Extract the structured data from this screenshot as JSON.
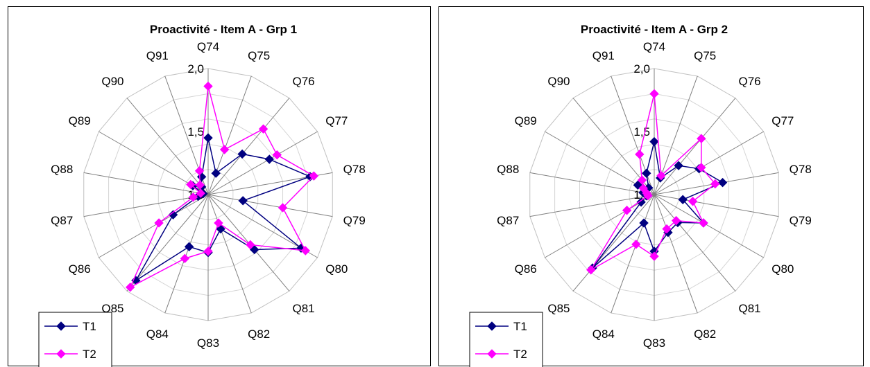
{
  "chart_data": [
    {
      "type": "radar",
      "title": "Proactivité - Item A - Grp 1",
      "categories": [
        "Q74",
        "Q75",
        "Q76",
        "Q77",
        "Q78",
        "Q79",
        "Q80",
        "Q81",
        "Q82",
        "Q83",
        "Q84",
        "Q85",
        "Q86",
        "Q87",
        "Q88",
        "Q89",
        "Q90",
        "Q91"
      ],
      "rlim": [
        1.0,
        2.0
      ],
      "ticks": [
        "1,0",
        "1,5",
        "2,0"
      ],
      "legend_position": "bottom-left",
      "series": [
        {
          "name": "T1",
          "color": "#000080",
          "marker": "diamond",
          "values": [
            1.45,
            1.18,
            1.42,
            1.56,
            1.82,
            1.28,
            1.85,
            1.57,
            1.29,
            1.46,
            1.44,
            1.89,
            1.32,
            1.08,
            1.04,
            1.14,
            1.08,
            1.15
          ]
        },
        {
          "name": "T2",
          "color": "#FF00FF",
          "marker": "diamond",
          "values": [
            1.86,
            1.38,
            1.68,
            1.63,
            1.85,
            1.6,
            1.89,
            1.52,
            1.24,
            1.45,
            1.54,
            1.96,
            1.45,
            1.12,
            1.06,
            1.16,
            1.1,
            1.2
          ]
        }
      ]
    },
    {
      "type": "radar",
      "title": "Proactivité - Item A -  Grp 2",
      "categories": [
        "Q74",
        "Q75",
        "Q76",
        "Q77",
        "Q78",
        "Q79",
        "Q80",
        "Q81",
        "Q82",
        "Q83",
        "Q84",
        "Q85",
        "Q86",
        "Q87",
        "Q88",
        "Q89",
        "Q90",
        "Q91"
      ],
      "rlim": [
        1.0,
        2.0
      ],
      "ticks": [
        "1,0",
        "1,5",
        "2,0"
      ],
      "legend_position": "bottom-left",
      "series": [
        {
          "name": "T1",
          "color": "#000080",
          "marker": "diamond",
          "values": [
            1.42,
            1.14,
            1.3,
            1.41,
            1.55,
            1.23,
            1.45,
            1.29,
            1.32,
            1.45,
            1.24,
            1.76,
            1.12,
            1.06,
            1.09,
            1.15,
            1.07,
            1.18
          ]
        },
        {
          "name": "T2",
          "color": "#FF00FF",
          "marker": "diamond",
          "values": [
            1.8,
            1.16,
            1.58,
            1.43,
            1.49,
            1.31,
            1.45,
            1.27,
            1.29,
            1.49,
            1.42,
            1.78,
            1.25,
            1.05,
            1.06,
            1.1,
            1.15,
            1.34
          ]
        }
      ]
    }
  ]
}
